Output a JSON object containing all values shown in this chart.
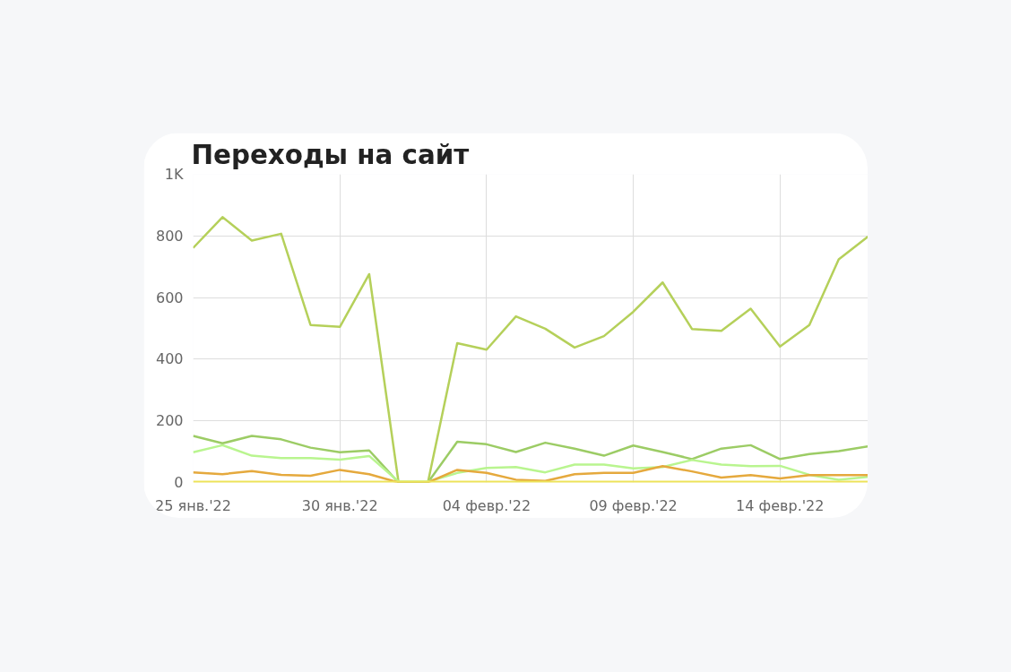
{
  "chart_data": {
    "type": "line",
    "title": "Переходы на сайт",
    "x": [
      "2022-01-25",
      "2022-01-26",
      "2022-01-27",
      "2022-01-28",
      "2022-01-29",
      "2022-01-30",
      "2022-01-31",
      "2022-02-01",
      "2022-02-02",
      "2022-02-03",
      "2022-02-04",
      "2022-02-05",
      "2022-02-06",
      "2022-02-07",
      "2022-02-08",
      "2022-02-09",
      "2022-02-10",
      "2022-02-11",
      "2022-02-12",
      "2022-02-13",
      "2022-02-14",
      "2022-02-15",
      "2022-02-16",
      "2022-02-17"
    ],
    "series": [
      {
        "color": "#b5d05a",
        "values": [
          761,
          861,
          785,
          807,
          511,
          505,
          676,
          0,
          0,
          452,
          431,
          539,
          499,
          438,
          475,
          554,
          649,
          498,
          492,
          564,
          441,
          511,
          724,
          798
        ]
      },
      {
        "color": "#9ccc65",
        "values": [
          151,
          127,
          151,
          140,
          113,
          98,
          104,
          0,
          0,
          132,
          124,
          99,
          129,
          110,
          87,
          120,
          99,
          76,
          110,
          121,
          76,
          92,
          102,
          117
        ]
      },
      {
        "color": "#b9f58f",
        "values": [
          98,
          121,
          87,
          79,
          79,
          74,
          86,
          3,
          3,
          31,
          47,
          50,
          33,
          58,
          58,
          46,
          50,
          73,
          58,
          53,
          54,
          25,
          9,
          18
        ]
      },
      {
        "color": "#e5a93d",
        "values": [
          33,
          27,
          37,
          25,
          22,
          41,
          27,
          0,
          0,
          41,
          31,
          9,
          5,
          27,
          31,
          31,
          53,
          36,
          16,
          24,
          13,
          24,
          24,
          24
        ]
      },
      {
        "color": "#ede35a",
        "values": [
          2,
          2,
          2,
          2,
          2,
          2,
          2,
          2,
          2,
          2,
          2,
          2,
          2,
          2,
          2,
          2,
          2,
          2,
          2,
          2,
          2,
          2,
          2,
          2
        ]
      }
    ],
    "xlim": [
      "2022-01-25",
      "2022-02-17"
    ],
    "xticks": [
      {
        "value": "2022-01-25",
        "label": "25 янв.'22"
      },
      {
        "value": "2022-01-30",
        "label": "30 янв.'22"
      },
      {
        "value": "2022-02-04",
        "label": "04 февр.'22"
      },
      {
        "value": "2022-02-09",
        "label": "09 февр.'22"
      },
      {
        "value": "2022-02-14",
        "label": "14 февр.'22"
      }
    ],
    "ylim": [
      0,
      1000
    ],
    "yticks": [
      0,
      200,
      400,
      600,
      800,
      {
        "value": 1000,
        "label": "1K"
      }
    ],
    "grid": true,
    "marker": "none",
    "line_style": "solid"
  }
}
